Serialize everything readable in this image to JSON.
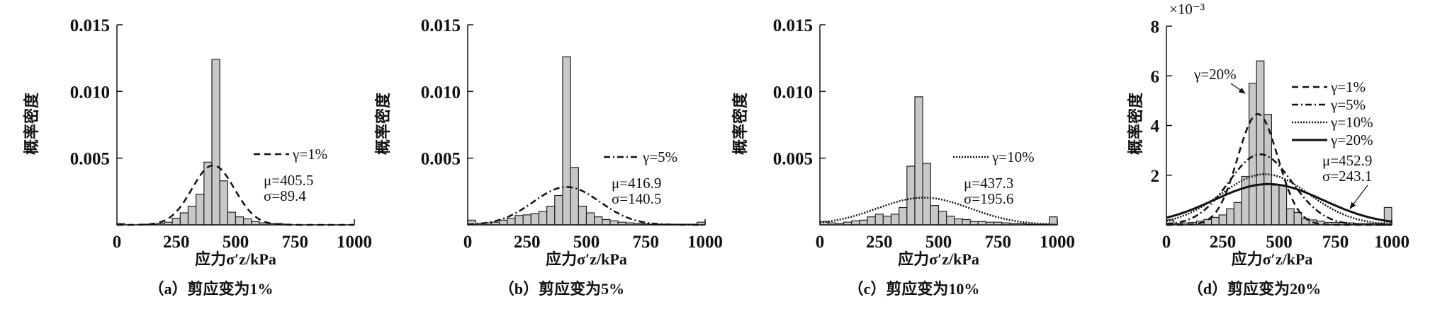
{
  "chart_data": [
    {
      "type": "bar",
      "caption": "（a）剪应变为1%",
      "xlabel": "应力σ′z/kPa",
      "ylabel": "概率密度",
      "xlim": [
        0,
        1000
      ],
      "ylim": [
        0,
        0.015
      ],
      "xticks": [
        "0",
        "250",
        "500",
        "750",
        "1000"
      ],
      "yticks": [
        "0.005",
        "0.010",
        "0.015"
      ],
      "y_multiplier": "",
      "bin_width": 33.33,
      "values": [
        0.0001,
        0,
        0,
        5e-05,
        5e-05,
        0.0001,
        0.0002,
        0.0005,
        0.0009,
        0.0014,
        0.0023,
        0.0047,
        0.0124,
        0.0033,
        0.00095,
        0.0006,
        0.00045,
        0.00025,
        0.00015,
        0.0001,
        0.0001,
        5e-05,
        0,
        0,
        0,
        0,
        0,
        0,
        0,
        0
      ],
      "fits": [
        {
          "name": "γ=1%",
          "style": "dashed",
          "mu": 405.5,
          "sigma": 89.4
        }
      ],
      "annotations": {
        "mu": "μ=405.5",
        "sigma": "σ=89.4"
      }
    },
    {
      "type": "bar",
      "caption": "（b）剪应变为5%",
      "xlabel": "应力σ′z/kPa",
      "ylabel": "概率密度",
      "xlim": [
        0,
        1000
      ],
      "ylim": [
        0,
        0.015
      ],
      "xticks": [
        "0",
        "250",
        "500",
        "750",
        "1000"
      ],
      "yticks": [
        "0.005",
        "0.010",
        "0.015"
      ],
      "y_multiplier": "",
      "bin_width": 33.33,
      "values": [
        0.00035,
        0.0001,
        0.00015,
        0.0002,
        0.00035,
        0.0005,
        0.0007,
        0.00075,
        0.00085,
        0.001,
        0.0014,
        0.0022,
        0.0126,
        0.0043,
        0.0014,
        0.0009,
        0.0006,
        0.0004,
        0.0003,
        0.0002,
        0.00015,
        0.0001,
        8e-05,
        5e-05,
        5e-05,
        5e-05,
        5e-05,
        5e-05,
        5e-05,
        0.0002
      ],
      "fits": [
        {
          "name": "γ=5%",
          "style": "dashdot",
          "mu": 416.9,
          "sigma": 140.5
        }
      ],
      "annotations": {
        "mu": "μ=416.9",
        "sigma": "σ=140.5"
      }
    },
    {
      "type": "bar",
      "caption": "（c）剪应变为10%",
      "xlabel": "应力σ′z/kPa",
      "ylabel": "概率密度",
      "xlim": [
        0,
        1000
      ],
      "ylim": [
        0,
        0.015
      ],
      "xticks": [
        "0",
        "250",
        "500",
        "750",
        "1000"
      ],
      "yticks": [
        "0.005",
        "0.010",
        "0.015"
      ],
      "y_multiplier": "",
      "bin_width": 33.33,
      "values": [
        0.00025,
        0.00015,
        0.0001,
        0.0002,
        0.0003,
        0.00035,
        0.0006,
        0.0008,
        0.00065,
        0.0008,
        0.0013,
        0.0044,
        0.0096,
        0.0046,
        0.00145,
        0.001,
        0.00065,
        0.00045,
        0.0004,
        0.00025,
        0.00025,
        0.0002,
        0.0002,
        0.00015,
        0.0001,
        0.0001,
        5e-05,
        5e-05,
        5e-05,
        0.0006
      ],
      "fits": [
        {
          "name": "γ=10%",
          "style": "dotted",
          "mu": 437.3,
          "sigma": 195.6
        }
      ],
      "annotations": {
        "mu": "μ=437.3",
        "sigma": "σ=195.6"
      }
    },
    {
      "type": "bar",
      "caption": "（d）剪应变为20%",
      "xlabel": "应力σ′z/kPa",
      "ylabel": "概率密度",
      "xlim": [
        0,
        1000
      ],
      "ylim": [
        0,
        0.008
      ],
      "xticks": [
        "0",
        "250",
        "500",
        "750",
        "1000"
      ],
      "yticks": [
        "2",
        "4",
        "6",
        "8"
      ],
      "y_multiplier": "×10⁻³",
      "bin_width": 33.33,
      "values": [
        0.0002,
        5e-05,
        8e-05,
        0.0001,
        0.00015,
        0.00022,
        0.0003,
        0.0004,
        0.00065,
        0.0009,
        0.00195,
        0.0057,
        0.0066,
        0.00445,
        0.0016,
        0.0016,
        0.00065,
        0.0005,
        0.00025,
        0.0002,
        0.00015,
        0.0001,
        0.0001,
        0.0001,
        8e-05,
        5e-05,
        5e-05,
        5e-05,
        5e-05,
        0.0007
      ],
      "fits": [
        {
          "name": "γ=1%",
          "style": "dashed",
          "mu": 405.5,
          "sigma": 89.4
        },
        {
          "name": "γ=5%",
          "style": "dashdot",
          "mu": 416.9,
          "sigma": 140.5
        },
        {
          "name": "γ=10%",
          "style": "dotted",
          "mu": 437.3,
          "sigma": 195.6
        },
        {
          "name": "γ=20%",
          "style": "solid",
          "mu": 452.9,
          "sigma": 243.1
        }
      ],
      "annotations": {
        "mu": "μ=452.9",
        "sigma": "σ=243.1",
        "peak_label": "γ=20%"
      }
    }
  ],
  "colors": {
    "bar_fill": "#c8c8c8",
    "bar_stroke": "#222222",
    "line": "#111111"
  }
}
